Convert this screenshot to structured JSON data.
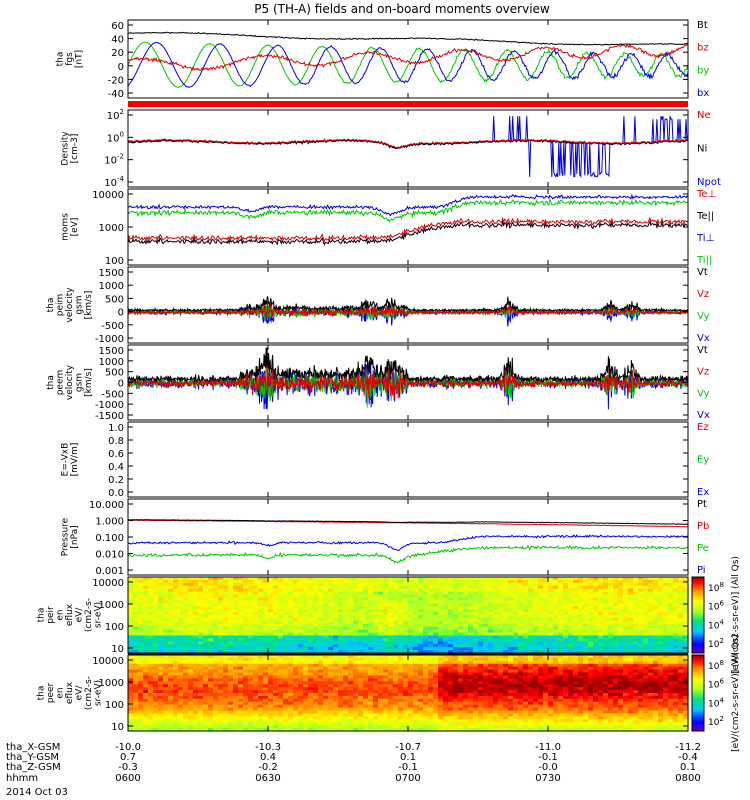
{
  "chart_data": {
    "type": "line",
    "title": "P5 (TH-A) fields and on-board moments overview",
    "time_axis": {
      "ticks": [
        "0600",
        "0630",
        "0700",
        "0730",
        "0800"
      ],
      "rows": [
        {
          "label": "tha_X-GSM",
          "values": [
            "-10.0",
            "-10.3",
            "-10.7",
            "-11.0",
            "-11.2"
          ]
        },
        {
          "label": "tha_Y-GSM",
          "values": [
            "0.7",
            "0.4",
            "0.1",
            "-0.1",
            "-0.4"
          ]
        },
        {
          "label": "tha_Z-GSM",
          "values": [
            "-0.3",
            "-0.2",
            "-0.1",
            "-0.0",
            "0.1"
          ]
        },
        {
          "label": "hhmm",
          "values": [
            "0600",
            "0630",
            "0700",
            "0730",
            "0800"
          ]
        }
      ],
      "date": "2014 Oct 03"
    },
    "panels": [
      {
        "ylabel": [
          "tha",
          "fgs",
          "[nT]"
        ],
        "yticks": [
          "60",
          "40",
          "20",
          "0",
          "-20",
          "-40"
        ],
        "legend": [
          {
            "name": "Bt",
            "color": "#000000"
          },
          {
            "name": "bz",
            "color": "#e00000"
          },
          {
            "name": "by",
            "color": "#00c800"
          },
          {
            "name": "bx",
            "color": "#0000e0"
          }
        ]
      },
      {
        "ylabel": [
          "Density",
          "[cm-3]"
        ],
        "yticks": [
          "10^2",
          "10^0",
          "10^-2",
          "10^-4"
        ],
        "legend": [
          {
            "name": "Ne",
            "color": "#e00000"
          },
          {
            "name": "Ni",
            "color": "#000000"
          },
          {
            "name": "Npot",
            "color": "#0000e0"
          }
        ]
      },
      {
        "ylabel": [
          "moms",
          "[eV]"
        ],
        "yticks": [
          "10000",
          "1000",
          "100"
        ],
        "legend": [
          {
            "name": "Te⊥",
            "color": "#e00000"
          },
          {
            "name": "Te||",
            "color": "#000000"
          },
          {
            "name": "Ti⊥",
            "color": "#0000e0"
          },
          {
            "name": "Ti||",
            "color": "#00c800"
          }
        ]
      },
      {
        "ylabel": [
          "tha",
          "peim",
          "velocity",
          "gsm",
          "[km/s]"
        ],
        "yticks": [
          "1500",
          "1000",
          "500",
          "0",
          "-500",
          "-1000"
        ],
        "legend": [
          {
            "name": "Vt",
            "color": "#000000"
          },
          {
            "name": "Vz",
            "color": "#e00000"
          },
          {
            "name": "Vy",
            "color": "#00c800"
          },
          {
            "name": "Vx",
            "color": "#0000e0"
          }
        ]
      },
      {
        "ylabel": [
          "tha",
          "peem",
          "velocity",
          "gsm",
          "[km/s]"
        ],
        "yticks": [
          "1500",
          "1000",
          "500",
          "0",
          "-500",
          "-1000",
          "-1500"
        ],
        "legend": [
          {
            "name": "Vt",
            "color": "#000000"
          },
          {
            "name": "Vz",
            "color": "#e00000"
          },
          {
            "name": "Vy",
            "color": "#00c800"
          },
          {
            "name": "Vx",
            "color": "#0000e0"
          }
        ]
      },
      {
        "ylabel": [
          "E=-VxB",
          "[mV/m]"
        ],
        "yticks": [
          "1.0",
          "0.8",
          "0.6",
          "0.4",
          "0.2",
          "0.0"
        ],
        "legend": [
          {
            "name": "Ez",
            "color": "#e00000"
          },
          {
            "name": "Ey",
            "color": "#00c800"
          },
          {
            "name": "Ex",
            "color": "#0000e0"
          }
        ]
      },
      {
        "ylabel": [
          "Pressure",
          "[nPa]"
        ],
        "yticks": [
          "10.000",
          "1.000",
          "0.100",
          "0.010",
          "0.001"
        ],
        "legend": [
          {
            "name": "Pt",
            "color": "#000000"
          },
          {
            "name": "Pb",
            "color": "#e00000"
          },
          {
            "name": "Pe",
            "color": "#00c800"
          },
          {
            "name": "Pi",
            "color": "#0000e0"
          }
        ]
      },
      {
        "ylabel": [
          "tha",
          "peir",
          "en",
          "eflux",
          "eV/",
          "(cm2-s-",
          "sr-eV)"
        ],
        "yticks": [
          "10000",
          "1000",
          "100",
          "10"
        ],
        "colorbar": {
          "ticks": [
            "10^8",
            "10^6",
            "10^4",
            "10^2"
          ],
          "label": "[eV/(cm2-s-sr-eV)] (All Qs)"
        }
      },
      {
        "ylabel": [
          "tha",
          "peer",
          "en",
          "eflux",
          "eV/",
          "(cm2-s-",
          "sr-eV)"
        ],
        "yticks": [
          "10000",
          "1000",
          "100",
          "10"
        ],
        "colorbar": {
          "ticks": [
            "10^8",
            "10^6",
            "10^4",
            "10^2"
          ],
          "label": "[eV/(cm2-s-sr-eV)] (All Qs)"
        }
      }
    ],
    "series_summary": {
      "fgs_nT": {
        "Bt": [
          44,
          40,
          39,
          32,
          27
        ],
        "bz": [
          5,
          -10,
          12,
          20,
          25
        ],
        "by": [
          30,
          -30,
          20,
          -15,
          10
        ],
        "bx": [
          -25,
          10,
          -30,
          10,
          5
        ]
      },
      "density_cm3": {
        "Ne": [
          0.3,
          0.3,
          0.15,
          0.4,
          0.25
        ],
        "Ni": [
          0.3,
          0.28,
          0.1,
          0.3,
          0.2
        ]
      },
      "temperature_eV": {
        "Ti_perp": [
          4000,
          3500,
          2500,
          6000,
          5000
        ],
        "Ti_par": [
          3000,
          2500,
          2000,
          4500,
          3500
        ],
        "Te_perp": [
          500,
          600,
          700,
          1500,
          1400
        ],
        "Te_par": [
          400,
          500,
          500,
          1200,
          1100
        ]
      },
      "pressure_nPa": {
        "Pt": [
          1.0,
          1.0,
          0.9,
          0.6,
          0.5
        ],
        "Pb": [
          0.9,
          0.9,
          0.8,
          0.5,
          0.35
        ],
        "Pi": [
          0.06,
          0.05,
          0.02,
          0.12,
          0.1
        ],
        "Pe": [
          0.012,
          0.01,
          0.004,
          0.03,
          0.025
        ]
      }
    }
  }
}
